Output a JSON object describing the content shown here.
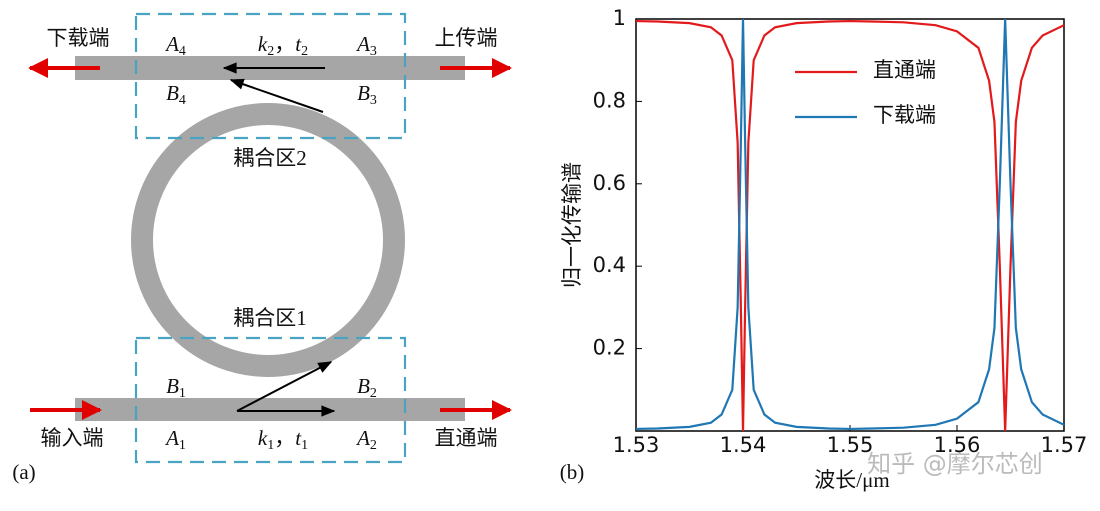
{
  "diagram": {
    "panel_label": "(a)",
    "ports": [
      "下载端",
      "上传端",
      "输入端",
      "直通端"
    ],
    "regions": [
      "耦合区2",
      "耦合区1"
    ],
    "symbols": [
      {
        "text": "A",
        "sub": "4"
      },
      {
        "text": "A",
        "sub": "3"
      },
      {
        "text": "B",
        "sub": "4"
      },
      {
        "text": "B",
        "sub": "3"
      },
      {
        "text": "B",
        "sub": "1"
      },
      {
        "text": "B",
        "sub": "2"
      },
      {
        "text": "A",
        "sub": "1"
      },
      {
        "text": "A",
        "sub": "2"
      }
    ],
    "params": [
      {
        "k": "k",
        "k_sub": "2",
        "sep": "，",
        "t": "t",
        "t_sub": "2"
      },
      {
        "k": "k",
        "k_sub": "1",
        "sep": "，",
        "t": "t",
        "t_sub": "1"
      }
    ]
  },
  "chart_data": {
    "type": "line",
    "panel_label": "(b)",
    "xlabel": "波长/μm",
    "ylabel": "归一化传输谱",
    "watermark": "知乎 @摩尔芯创",
    "x": [
      1.53,
      1.532,
      1.535,
      1.537,
      1.538,
      1.539,
      1.5395,
      1.5398,
      1.54,
      1.5402,
      1.5405,
      1.541,
      1.542,
      1.543,
      1.545,
      1.548,
      1.55,
      1.552,
      1.555,
      1.558,
      1.56,
      1.562,
      1.563,
      1.5635,
      1.564,
      1.5645,
      1.565,
      1.5655,
      1.566,
      1.567,
      1.568,
      1.57
    ],
    "series": [
      {
        "name": "直通端",
        "color": "#e31a1c",
        "values": [
          0.995,
          0.994,
          0.99,
          0.98,
          0.96,
          0.9,
          0.7,
          0.3,
          0,
          0.3,
          0.7,
          0.9,
          0.96,
          0.98,
          0.99,
          0.994,
          0.995,
          0.994,
          0.992,
          0.985,
          0.97,
          0.93,
          0.85,
          0.75,
          0.4,
          0,
          0.4,
          0.75,
          0.85,
          0.93,
          0.96,
          0.985
        ]
      },
      {
        "name": "下载端",
        "color": "#1f77b4",
        "values": [
          0.005,
          0.006,
          0.01,
          0.02,
          0.04,
          0.1,
          0.3,
          0.7,
          1,
          0.7,
          0.3,
          0.1,
          0.04,
          0.02,
          0.01,
          0.006,
          0.005,
          0.006,
          0.008,
          0.015,
          0.03,
          0.07,
          0.15,
          0.25,
          0.6,
          1,
          0.6,
          0.25,
          0.15,
          0.07,
          0.04,
          0.015
        ]
      }
    ],
    "xlim": [
      1.53,
      1.57
    ],
    "ylim": [
      0,
      1
    ],
    "xticks": [
      1.53,
      1.54,
      1.55,
      1.56,
      1.57
    ],
    "yticks": [
      0.2,
      0.4,
      0.6,
      0.8,
      1
    ],
    "legend": "upper center"
  }
}
